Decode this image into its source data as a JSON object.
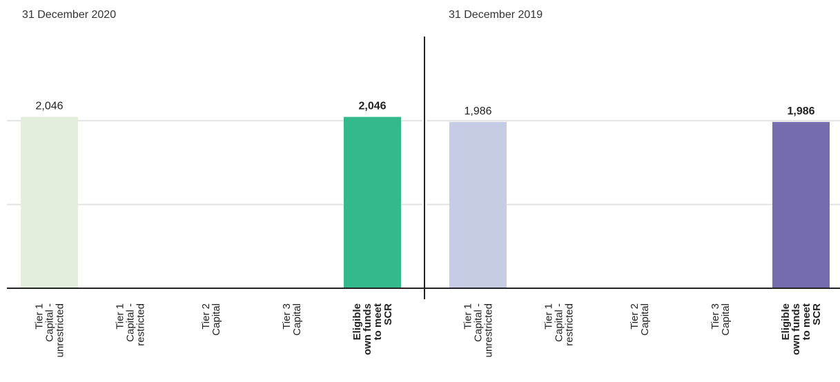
{
  "chart_data": [
    {
      "type": "bar",
      "title": "31 December 2020",
      "categories": [
        [
          "Tier 1",
          "Capital -",
          "unrestricted"
        ],
        [
          "Tier 1",
          "Capital -",
          "restricted"
        ],
        [
          "Tier 2",
          "Capital"
        ],
        [
          "Tier 3",
          "Capital"
        ],
        [
          "Eligible",
          "own funds",
          "to meet",
          "SCR"
        ]
      ],
      "values": [
        2046,
        null,
        null,
        null,
        2046
      ],
      "value_labels": [
        "2,046",
        "",
        "",
        "",
        "2,046"
      ],
      "bold": [
        false,
        false,
        false,
        false,
        true
      ],
      "colors": [
        "#e3eedc",
        "#e3eedc",
        "#e3eedc",
        "#e3eedc",
        "#33b98b"
      ],
      "ylim": [
        0,
        2800
      ],
      "grid": true
    },
    {
      "type": "bar",
      "title": "31 December 2019",
      "categories": [
        [
          "Tier 1",
          "Capital -",
          "unrestricted"
        ],
        [
          "Tier 1",
          "Capital -",
          "restricted"
        ],
        [
          "Tier 2",
          "Capital"
        ],
        [
          "Tier 3",
          "Capital"
        ],
        [
          "Eligible",
          "own funds",
          "to meet",
          "SCR"
        ]
      ],
      "values": [
        1986,
        null,
        null,
        null,
        1986
      ],
      "value_labels": [
        "1,986",
        "",
        "",
        "",
        "1,986"
      ],
      "bold": [
        false,
        false,
        false,
        false,
        true
      ],
      "colors": [
        "#c7cce5",
        "#c7cce5",
        "#c7cce5",
        "#c7cce5",
        "#766daf"
      ],
      "ylim": [
        0,
        2800
      ],
      "grid": true
    }
  ]
}
